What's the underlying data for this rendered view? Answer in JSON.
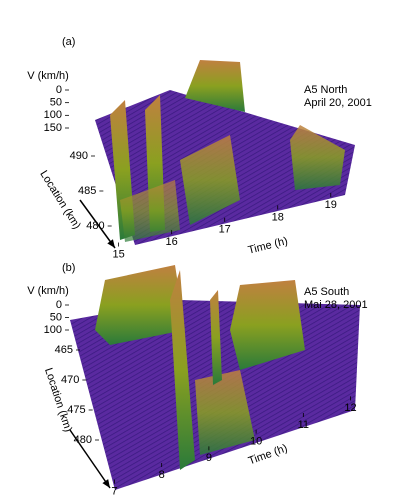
{
  "chart_data": [
    {
      "type": "surface",
      "label": "(a)",
      "title": "A5 North",
      "subtitle": "April 20, 2001",
      "zlabel": "V (km/h)",
      "zticks": [
        0,
        50,
        100,
        150
      ],
      "zlim": [
        0,
        150
      ],
      "xlabel": "Time (h)",
      "xticks": [
        15,
        16,
        17,
        18,
        19
      ],
      "xlim": [
        14.8,
        19.4
      ],
      "ylabel": "Location (km)",
      "yticks": [
        490,
        485,
        480
      ],
      "ylim": [
        493,
        478
      ]
    },
    {
      "type": "surface",
      "label": "(b)",
      "title": "A5 South",
      "subtitle": "Mai 28, 2001",
      "zlabel": "V (km/h)",
      "zticks": [
        0,
        50,
        100
      ],
      "zlim": [
        0,
        100
      ],
      "xlabel": "Time (h)",
      "xticks": [
        7,
        8,
        9,
        10,
        11,
        12
      ],
      "xlim": [
        6.8,
        12.2
      ],
      "ylabel": "Location (km)",
      "yticks": [
        465,
        470,
        475,
        480
      ],
      "ylim": [
        465,
        480
      ]
    }
  ]
}
